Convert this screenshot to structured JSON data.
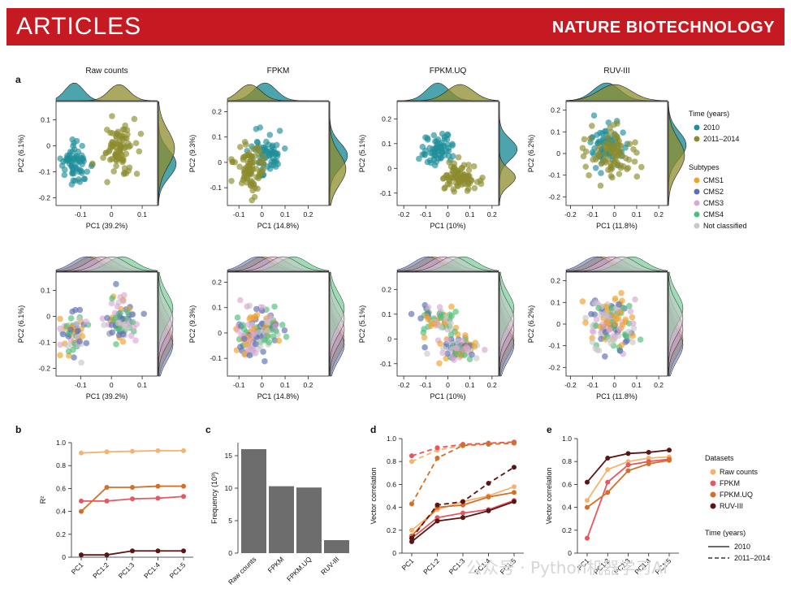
{
  "header": {
    "section": "ARTICLES",
    "journal": "NATURE BIOTECHNOLOGY"
  },
  "panel_letters": [
    "a",
    "b",
    "c",
    "d",
    "e"
  ],
  "colors": {
    "time_2010": "#1f8f99",
    "time_2011": "#8c8c2e",
    "CMS1": "#f0a22b",
    "CMS2": "#5b6fb3",
    "CMS3": "#d9a8d4",
    "CMS4": "#4fbf78",
    "NotClassified": "#c8c8c8",
    "raw": "#f5b36e",
    "fpkm": "#e8565f",
    "fpkmuq": "#d2702a",
    "ruv": "#5a1616",
    "bar": "#6d6d6d"
  },
  "legend_a": {
    "time_title": "Time (years)",
    "time_items": [
      "2010",
      "2011–2014"
    ],
    "subtype_title": "Subtypes",
    "subtype_items": [
      "CMS1",
      "CMS2",
      "CMS3",
      "CMS4",
      "Not classified"
    ]
  },
  "legend_de": {
    "datasets_title": "Datasets",
    "datasets": [
      "Raw counts",
      "FPKM",
      "FPKM.UQ",
      "RUV-III"
    ],
    "time_title": "Time (years)",
    "time_items": [
      "2010",
      "2011–2014"
    ]
  },
  "watermark": "公众号 · Python机器学习AI",
  "chart_data": [
    {
      "panel": "a",
      "type": "scatter",
      "description": "PCA plots with marginal density, top row coloured by time, bottom row coloured by subtype",
      "columns": [
        {
          "title": "Raw counts",
          "xlabel": "PC1 (39.2%)",
          "ylabel": "PC2 (6.1%)",
          "xticks": [
            -0.1,
            0,
            0.1
          ],
          "yticks": [
            0.1,
            0,
            -0.1,
            -0.2
          ],
          "xlim": [
            -0.18,
            0.15
          ],
          "ylim": [
            -0.23,
            0.17
          ]
        },
        {
          "title": "FPKM",
          "xlabel": "PC1 (14.8%)",
          "ylabel": "PC2 (9.3%)",
          "xticks": [
            -0.1,
            0,
            0.1,
            0.2
          ],
          "yticks": [
            0.2,
            0.1,
            0,
            -0.1
          ],
          "xlim": [
            -0.15,
            0.29
          ],
          "ylim": [
            -0.17,
            0.24
          ]
        },
        {
          "title": "FPKM.UQ",
          "xlabel": "PC1 (10%)",
          "ylabel": "PC2 (5.1%)",
          "xticks": [
            -0.2,
            -0.1,
            0,
            0.1,
            0.2
          ],
          "yticks": [
            0.2,
            0.1,
            0,
            -0.1
          ],
          "xlim": [
            -0.23,
            0.23
          ],
          "ylim": [
            -0.15,
            0.27
          ]
        },
        {
          "title": "RUV-III",
          "xlabel": "PC1 (11.8%)",
          "ylabel": "PC2 (6.2%)",
          "xticks": [
            -0.2,
            -0.1,
            0,
            0.1,
            0.2
          ],
          "yticks": [
            0.2,
            0.1,
            0,
            -0.1,
            -0.2
          ],
          "xlim": [
            -0.22,
            0.24
          ],
          "ylim": [
            -0.24,
            0.24
          ]
        }
      ]
    },
    {
      "panel": "b",
      "type": "line",
      "categories": [
        "PC1",
        "PC1:2",
        "PC1:3",
        "PC1:4",
        "PC1:5"
      ],
      "ylabel": "R²",
      "ylim": [
        0,
        1.0
      ],
      "yticks": [
        0,
        0.2,
        0.4,
        0.6,
        0.8,
        1.0
      ],
      "series": [
        {
          "name": "Raw counts",
          "values": [
            0.91,
            0.92,
            0.925,
            0.93,
            0.93
          ]
        },
        {
          "name": "FPKM",
          "values": [
            0.49,
            0.49,
            0.51,
            0.515,
            0.53
          ]
        },
        {
          "name": "FPKM.UQ",
          "values": [
            0.4,
            0.61,
            0.61,
            0.62,
            0.62
          ]
        },
        {
          "name": "RUV-III",
          "values": [
            0.02,
            0.02,
            0.055,
            0.055,
            0.055
          ]
        }
      ]
    },
    {
      "panel": "c",
      "type": "bar",
      "categories": [
        "Raw counts",
        "FPKM",
        "FPKM.UQ",
        "RUV-III"
      ],
      "values": [
        16,
        10.3,
        10.1,
        2
      ],
      "ylabel": "Frequency (10³)",
      "ylim": [
        0,
        17
      ],
      "yticks": [
        0,
        5,
        10,
        15
      ]
    },
    {
      "panel": "d",
      "type": "line",
      "categories": [
        "PC1",
        "PC1:2",
        "PC1:3",
        "PC1:4",
        "PC1:5"
      ],
      "ylabel": "Vector correlation",
      "ylim": [
        0,
        1.0
      ],
      "yticks": [
        0,
        0.2,
        0.4,
        0.6,
        0.8,
        1.0
      ],
      "series": [
        {
          "name": "Raw counts",
          "time": "2010",
          "values": [
            0.2,
            0.38,
            0.45,
            0.5,
            0.58
          ]
        },
        {
          "name": "FPKM",
          "time": "2010",
          "values": [
            0.13,
            0.31,
            0.35,
            0.38,
            0.46
          ]
        },
        {
          "name": "FPKM.UQ",
          "time": "2010",
          "values": [
            0.15,
            0.4,
            0.42,
            0.49,
            0.53
          ]
        },
        {
          "name": "RUV-III",
          "time": "2010",
          "values": [
            0.1,
            0.28,
            0.31,
            0.37,
            0.45
          ]
        },
        {
          "name": "Raw counts",
          "time": "2011–2014",
          "values": [
            0.8,
            0.9,
            0.94,
            0.96,
            0.97
          ]
        },
        {
          "name": "FPKM",
          "time": "2011–2014",
          "values": [
            0.85,
            0.92,
            0.95,
            0.96,
            0.97
          ]
        },
        {
          "name": "FPKM.UQ",
          "time": "2011–2014",
          "values": [
            0.43,
            0.83,
            0.94,
            0.95,
            0.96
          ]
        },
        {
          "name": "RUV-III",
          "time": "2011–2014",
          "values": [
            0.13,
            0.42,
            0.45,
            0.61,
            0.75
          ]
        }
      ]
    },
    {
      "panel": "e",
      "type": "line",
      "categories": [
        "PC1",
        "PC1:2",
        "PC1:3",
        "PC1:4",
        "PC1:5"
      ],
      "ylabel": "Vector correlation",
      "ylim": [
        0,
        1.0
      ],
      "yticks": [
        0,
        0.2,
        0.4,
        0.6,
        0.8,
        1.0
      ],
      "series": [
        {
          "name": "Raw counts",
          "values": [
            0.46,
            0.73,
            0.8,
            0.83,
            0.84
          ]
        },
        {
          "name": "FPKM",
          "values": [
            0.13,
            0.62,
            0.77,
            0.8,
            0.82
          ]
        },
        {
          "name": "FPKM.UQ",
          "values": [
            0.4,
            0.53,
            0.72,
            0.78,
            0.81
          ]
        },
        {
          "name": "RUV-III",
          "values": [
            0.62,
            0.83,
            0.87,
            0.88,
            0.9
          ]
        }
      ]
    }
  ]
}
